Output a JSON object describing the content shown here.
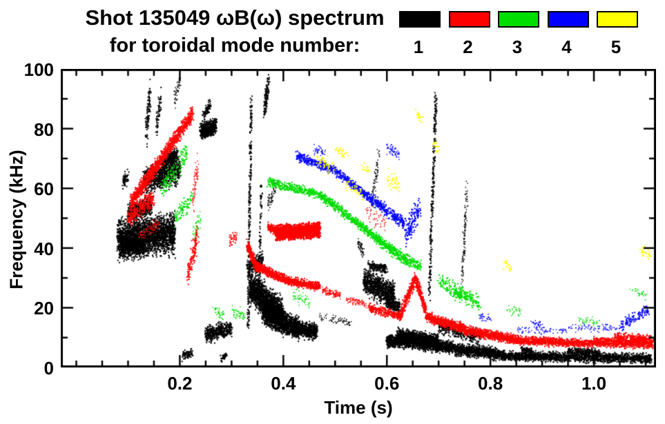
{
  "header": {
    "title": "Shot 135049 ωB(ω) spectrum",
    "subtitle": "for toroidal mode number:"
  },
  "legend": {
    "modes": [
      {
        "label": "1",
        "color": "#000000"
      },
      {
        "label": "2",
        "color": "#ff0000"
      },
      {
        "label": "3",
        "color": "#00dd00"
      },
      {
        "label": "4",
        "color": "#0000ff"
      },
      {
        "label": "5",
        "color": "#ffff00"
      }
    ]
  },
  "chart_data": {
    "type": "scatter",
    "title": "Shot 135049 ωB(ω) spectrum",
    "subtitle": "for toroidal mode number:",
    "xlabel": "Time (s)",
    "ylabel": "Frequency (kHz)",
    "xlim": [
      -0.03,
      1.12
    ],
    "ylim": [
      0,
      100
    ],
    "x_ticks": [
      0.2,
      0.4,
      0.6,
      0.8,
      1.0
    ],
    "x_tick_labels": [
      "0.2",
      "0.4",
      "0.6",
      "0.8",
      "1.0"
    ],
    "x_minor_step": 0.05,
    "y_ticks": [
      0,
      20,
      40,
      60,
      80,
      100
    ],
    "y_tick_labels": [
      "0",
      "20",
      "40",
      "60",
      "80",
      "100"
    ],
    "y_minor_step": 10,
    "grid": false,
    "legend_position": "top-right",
    "series_note": "bands = [t0, t1, f0, f1, freq_spread_kHz, n_points, dot_size_px]; each band is a linear segment of spectral activity read from the spectrogram",
    "series": [
      {
        "name": "n=1",
        "color": "#000000",
        "bands": [
          [
            0.08,
            0.19,
            43,
            45,
            6,
            2400,
            2
          ],
          [
            0.085,
            0.13,
            40,
            41,
            3,
            600,
            2
          ],
          [
            0.1,
            0.145,
            52,
            54,
            3,
            500,
            2
          ],
          [
            0.13,
            0.2,
            62,
            66,
            4,
            800,
            2
          ],
          [
            0.165,
            0.195,
            68,
            71,
            2.5,
            350,
            2
          ],
          [
            0.135,
            0.143,
            78,
            93,
            5,
            100,
            2
          ],
          [
            0.155,
            0.163,
            80,
            90,
            4,
            60,
            2
          ],
          [
            0.09,
            0.1,
            62,
            64,
            2,
            60,
            2
          ],
          [
            0.19,
            0.2,
            90,
            96,
            3,
            50,
            1.5
          ],
          [
            0.24,
            0.27,
            79,
            81,
            2.5,
            550,
            2
          ],
          [
            0.245,
            0.26,
            84,
            88,
            2,
            80,
            2
          ],
          [
            0.25,
            0.3,
            11,
            13,
            2.5,
            450,
            2
          ],
          [
            0.205,
            0.225,
            4,
            5,
            1.5,
            80,
            2
          ],
          [
            0.28,
            0.29,
            3,
            4,
            1,
            40,
            2
          ],
          [
            0.332,
            0.338,
            15,
            90,
            3,
            260,
            2
          ],
          [
            0.352,
            0.358,
            20,
            60,
            3,
            100,
            2
          ],
          [
            0.363,
            0.372,
            86,
            96,
            4,
            110,
            2
          ],
          [
            0.37,
            0.385,
            55,
            60,
            3,
            60,
            1.5
          ],
          [
            0.33,
            0.36,
            33,
            36,
            2.5,
            220,
            2
          ],
          [
            0.335,
            0.4,
            27,
            17,
            5,
            1800,
            2
          ],
          [
            0.36,
            0.43,
            18,
            13,
            3.5,
            1200,
            2
          ],
          [
            0.42,
            0.465,
            13,
            12,
            2.5,
            600,
            2
          ],
          [
            0.47,
            0.53,
            17,
            15,
            1.5,
            70,
            1.5
          ],
          [
            0.545,
            0.555,
            42,
            38,
            2,
            60,
            1.5
          ],
          [
            0.555,
            0.615,
            29,
            24,
            4,
            900,
            2
          ],
          [
            0.565,
            0.6,
            34,
            33,
            1.5,
            160,
            2
          ],
          [
            0.57,
            0.585,
            55,
            70,
            5,
            80,
            1.5
          ],
          [
            0.6,
            0.625,
            22,
            20,
            2,
            200,
            2
          ],
          [
            0.682,
            0.695,
            25,
            90,
            6,
            260,
            2
          ],
          [
            0.745,
            0.755,
            28,
            60,
            6,
            130,
            1.5
          ],
          [
            0.6,
            0.66,
            9,
            8.5,
            2,
            900,
            2
          ],
          [
            0.62,
            0.7,
            11,
            9,
            2,
            800,
            2
          ],
          [
            0.66,
            0.73,
            8,
            6.5,
            2,
            700,
            2
          ],
          [
            0.7,
            0.78,
            14,
            10,
            2.5,
            350,
            2
          ],
          [
            0.73,
            0.82,
            6,
            4.5,
            1.8,
            900,
            2
          ],
          [
            0.82,
            0.93,
            4,
            3.5,
            1.5,
            800,
            2
          ],
          [
            0.93,
            1.11,
            3.5,
            3,
            1.5,
            1100,
            2
          ],
          [
            0.95,
            1.01,
            5.5,
            5,
            1.2,
            250,
            2
          ],
          [
            0.86,
            0.88,
            6,
            5.5,
            1,
            80,
            2
          ]
        ]
      },
      {
        "name": "n=2",
        "color": "#ff0000",
        "bands": [
          [
            0.105,
            0.225,
            55,
            85,
            2.5,
            1100,
            2
          ],
          [
            0.1,
            0.15,
            50,
            57,
            3,
            260,
            2
          ],
          [
            0.12,
            0.16,
            44,
            48,
            2,
            80,
            1.5
          ],
          [
            0.215,
            0.235,
            30,
            45,
            4,
            140,
            2
          ],
          [
            0.225,
            0.235,
            55,
            68,
            4,
            70,
            1.5
          ],
          [
            0.295,
            0.31,
            42,
            44,
            2,
            60,
            1.5
          ],
          [
            0.33,
            0.345,
            41,
            35,
            2,
            180,
            2
          ],
          [
            0.345,
            0.41,
            34,
            29,
            1.5,
            500,
            2
          ],
          [
            0.41,
            0.47,
            29,
            27,
            1.3,
            420,
            2
          ],
          [
            0.385,
            0.47,
            45,
            46,
            2.2,
            1400,
            2.5
          ],
          [
            0.37,
            0.386,
            47,
            46,
            1.5,
            120,
            2
          ],
          [
            0.475,
            0.51,
            26,
            24,
            1.2,
            130,
            1.5
          ],
          [
            0.52,
            0.56,
            23,
            21,
            1.2,
            80,
            1.5
          ],
          [
            0.565,
            0.625,
            20,
            17,
            1.5,
            260,
            2
          ],
          [
            0.625,
            0.655,
            17,
            30,
            2,
            260,
            2
          ],
          [
            0.655,
            0.675,
            30,
            19,
            2,
            220,
            2
          ],
          [
            0.675,
            0.75,
            17,
            13,
            1.5,
            550,
            2
          ],
          [
            0.75,
            0.86,
            12.5,
            9,
            1.5,
            800,
            2
          ],
          [
            0.86,
            1.0,
            9,
            8,
            1.3,
            800,
            2
          ],
          [
            1.0,
            1.115,
            8.5,
            8,
            1.5,
            700,
            2
          ],
          [
            1.04,
            1.11,
            10.5,
            9.5,
            1.2,
            250,
            2
          ],
          [
            0.56,
            0.6,
            52,
            48,
            3,
            50,
            1.5
          ]
        ]
      },
      {
        "name": "n=3",
        "color": "#00dd00",
        "bands": [
          [
            0.165,
            0.215,
            60,
            72,
            4,
            130,
            2
          ],
          [
            0.19,
            0.225,
            50,
            57,
            3,
            80,
            2
          ],
          [
            0.225,
            0.24,
            45,
            50,
            3,
            40,
            1.5
          ],
          [
            0.37,
            0.47,
            62,
            58,
            1.5,
            320,
            2
          ],
          [
            0.47,
            0.56,
            58,
            46,
            1.5,
            380,
            2
          ],
          [
            0.56,
            0.635,
            46,
            36,
            1.8,
            380,
            2
          ],
          [
            0.635,
            0.665,
            36,
            34,
            2,
            120,
            2
          ],
          [
            0.7,
            0.78,
            29,
            21,
            3,
            160,
            2
          ],
          [
            0.73,
            0.765,
            25,
            23,
            1.5,
            90,
            2
          ],
          [
            0.3,
            0.325,
            19,
            17,
            2,
            50,
            1.5
          ],
          [
            0.265,
            0.285,
            19,
            17,
            2,
            40,
            1.5
          ],
          [
            0.42,
            0.45,
            24,
            22,
            2,
            50,
            1.5
          ],
          [
            0.83,
            0.86,
            20,
            18,
            1.5,
            30,
            1.5
          ],
          [
            0.97,
            1.01,
            16,
            15,
            1.5,
            40,
            1.5
          ],
          [
            1.07,
            1.1,
            26,
            24,
            1.5,
            30,
            1.5
          ]
        ]
      },
      {
        "name": "n=4",
        "color": "#0000ff",
        "bands": [
          [
            0.425,
            0.5,
            71,
            66,
            1.5,
            280,
            2
          ],
          [
            0.5,
            0.58,
            66,
            55,
            1.5,
            300,
            2
          ],
          [
            0.58,
            0.635,
            55,
            48,
            1.8,
            220,
            2
          ],
          [
            0.635,
            0.665,
            44,
            54,
            4,
            130,
            2
          ],
          [
            0.6,
            0.625,
            74,
            71,
            2,
            60,
            1.5
          ],
          [
            0.46,
            0.48,
            73,
            72,
            1.5,
            40,
            1.5
          ],
          [
            0.78,
            0.8,
            17,
            16,
            1.5,
            30,
            1.5
          ],
          [
            0.85,
            0.95,
            13,
            12,
            1.3,
            80,
            1.5
          ],
          [
            0.95,
            1.05,
            13.5,
            13,
            1.3,
            80,
            1.5
          ],
          [
            1.05,
            1.105,
            14,
            19,
            2,
            110,
            2
          ],
          [
            0.88,
            0.9,
            15,
            14,
            1,
            30,
            1.5
          ]
        ]
      },
      {
        "name": "n=5",
        "color": "#ffff00",
        "bands": [
          [
            0.465,
            0.5,
            70,
            66,
            2.5,
            45,
            2
          ],
          [
            0.5,
            0.525,
            73,
            71,
            2,
            25,
            2
          ],
          [
            0.52,
            0.555,
            62,
            58,
            2.5,
            35,
            2
          ],
          [
            0.55,
            0.57,
            68,
            66,
            1.5,
            15,
            2
          ],
          [
            0.6,
            0.625,
            64,
            60,
            2.5,
            35,
            2
          ],
          [
            0.655,
            0.67,
            85,
            83,
            1.5,
            18,
            2
          ],
          [
            0.69,
            0.7,
            75,
            73,
            1.5,
            15,
            2
          ],
          [
            0.825,
            0.84,
            35,
            34,
            1.5,
            15,
            2
          ],
          [
            1.085,
            1.11,
            40,
            37,
            1.5,
            25,
            2
          ]
        ]
      }
    ]
  }
}
